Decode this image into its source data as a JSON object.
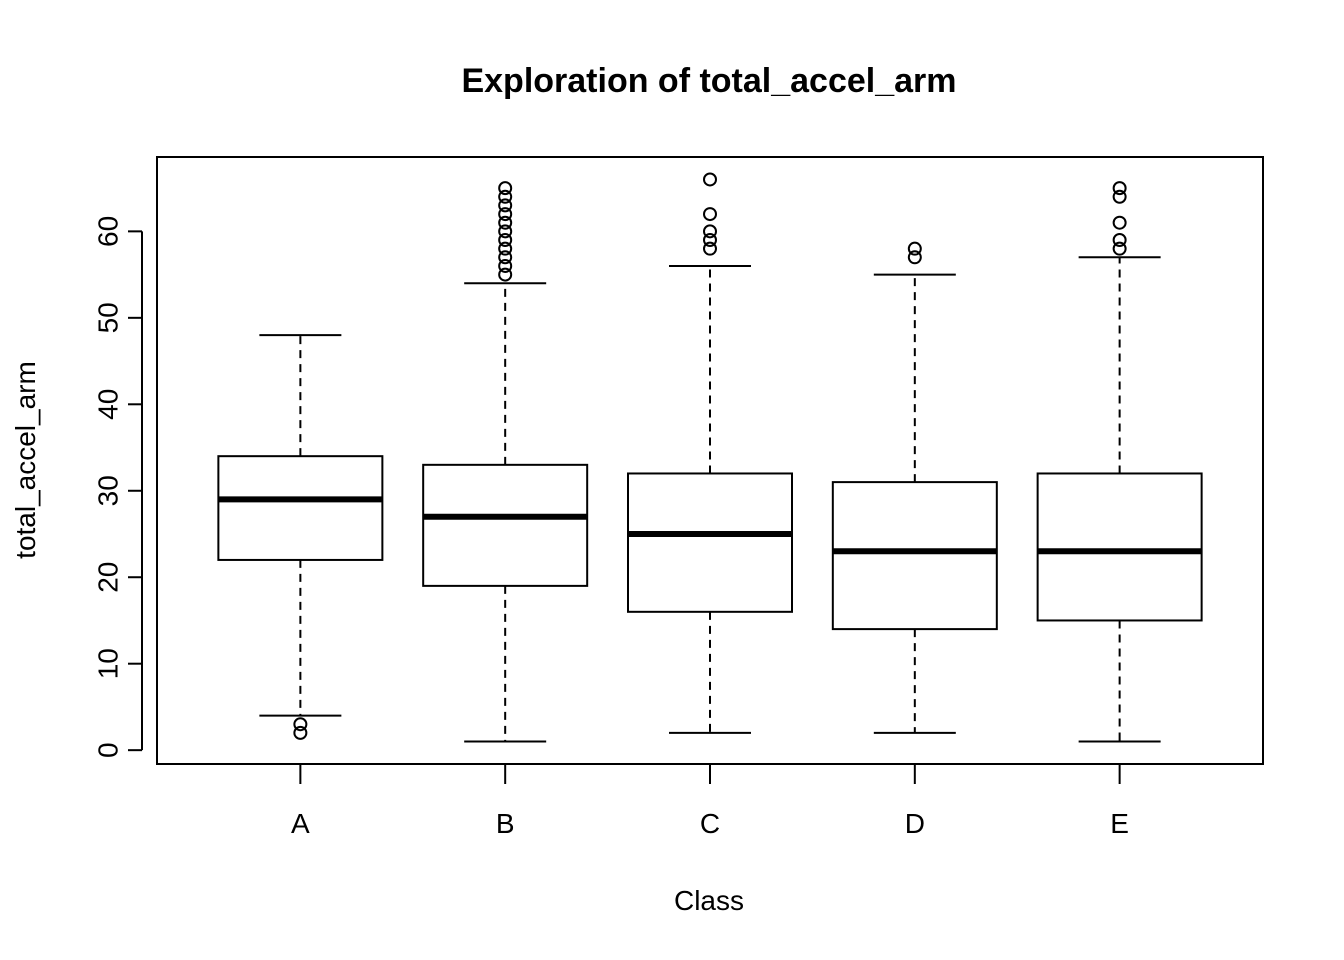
{
  "chart_data": {
    "type": "boxplot",
    "title": "Exploration of  total_accel_arm",
    "xlabel": "Class",
    "ylabel": "total_accel_arm",
    "categories": [
      "A",
      "B",
      "C",
      "D",
      "E"
    ],
    "y_ticks": [
      0,
      10,
      20,
      30,
      40,
      50,
      60
    ],
    "ylim": [
      -1.6,
      68.6
    ],
    "grid": false,
    "boxes": [
      {
        "category": "A",
        "whisker_low": 4,
        "q1": 22,
        "median": 29,
        "q3": 34,
        "whisker_high": 48,
        "outliers": [
          2,
          3
        ]
      },
      {
        "category": "B",
        "whisker_low": 1,
        "q1": 19,
        "median": 27,
        "q3": 33,
        "whisker_high": 54,
        "outliers": [
          55,
          56,
          57,
          58,
          59,
          60,
          61,
          62,
          63,
          64,
          65
        ]
      },
      {
        "category": "C",
        "whisker_low": 2,
        "q1": 16,
        "median": 25,
        "q3": 32,
        "whisker_high": 56,
        "outliers": [
          58,
          59,
          60,
          62,
          66
        ]
      },
      {
        "category": "D",
        "whisker_low": 2,
        "q1": 14,
        "median": 23,
        "q3": 31,
        "whisker_high": 55,
        "outliers": [
          57,
          58
        ]
      },
      {
        "category": "E",
        "whisker_low": 1,
        "q1": 15,
        "median": 23,
        "q3": 32,
        "whisker_high": 57,
        "outliers": [
          58,
          59,
          61,
          64,
          65
        ]
      }
    ]
  }
}
